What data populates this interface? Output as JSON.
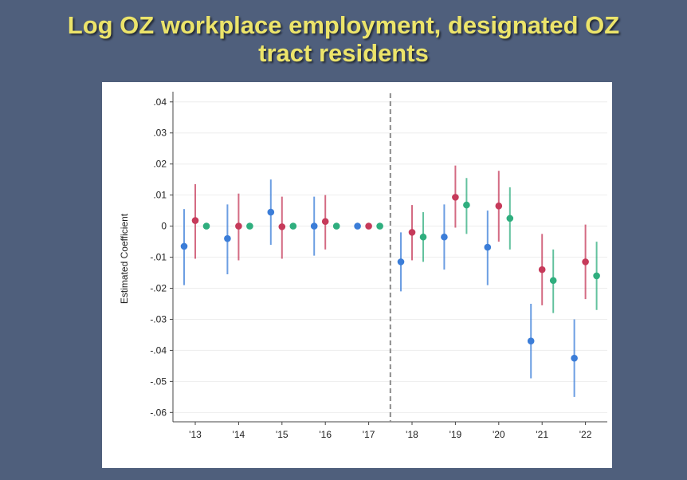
{
  "slide": {
    "title_line1": "Log OZ workplace employment, designated OZ",
    "title_line2": "tract residents"
  },
  "chart_data": {
    "type": "scatter",
    "title": "Log OZ workplace employment, designated OZ tract residents",
    "xlabel": "",
    "ylabel": "Estimated Coefficient",
    "categories": [
      "'13",
      "'14",
      "'15",
      "'16",
      "'17",
      "'18",
      "'19",
      "'20",
      "'21",
      "'22"
    ],
    "ylim": [
      -0.063,
      0.042
    ],
    "yticks": [
      0.04,
      0.03,
      0.02,
      0.01,
      0,
      -0.01,
      -0.02,
      -0.03,
      -0.04,
      -0.05,
      -0.06
    ],
    "ytick_labels": [
      ".04",
      ".03",
      ".02",
      ".01",
      "0",
      "-.01",
      "-.02",
      "-.03",
      "-.04",
      "-.05",
      "-.06"
    ],
    "reference_line_after": "'17",
    "grid": true,
    "series": [
      {
        "color": "#3b7dd8",
        "values": [
          -0.0065,
          -0.004,
          0.0045,
          0.0,
          0.0,
          -0.0115,
          -0.0035,
          -0.0068,
          -0.037,
          -0.0425
        ],
        "ci_low": [
          -0.019,
          -0.0155,
          -0.006,
          -0.0095,
          0.0,
          -0.021,
          -0.014,
          -0.019,
          -0.049,
          -0.055
        ],
        "ci_high": [
          0.0055,
          0.007,
          0.015,
          0.0095,
          0.0,
          -0.002,
          0.007,
          0.005,
          -0.025,
          -0.03
        ]
      },
      {
        "color": "#c63a5a",
        "values": [
          0.0018,
          0.0,
          -0.0002,
          0.0015,
          0.0,
          -0.002,
          0.0093,
          0.0065,
          -0.014,
          -0.0115
        ],
        "ci_low": [
          -0.0105,
          -0.011,
          -0.0105,
          -0.0075,
          0.0,
          -0.011,
          -0.0005,
          -0.005,
          -0.0255,
          -0.0235
        ],
        "ci_high": [
          0.0135,
          0.0105,
          0.0095,
          0.01,
          0.0,
          0.0068,
          0.0195,
          0.0178,
          -0.0025,
          0.0005
        ]
      },
      {
        "color": "#2fae7e",
        "values": [
          0.0,
          0.0,
          0.0,
          0.0,
          0.0,
          -0.0035,
          0.0068,
          0.0025,
          -0.0175,
          -0.016
        ],
        "ci_low": [
          0.0,
          0.0,
          0.0,
          0.0,
          0.0,
          -0.0115,
          -0.0025,
          -0.0075,
          -0.028,
          -0.027
        ],
        "ci_high": [
          0.0,
          0.0,
          0.0,
          0.0,
          0.0,
          0.0045,
          0.0155,
          0.0125,
          -0.0075,
          -0.005
        ]
      }
    ]
  }
}
